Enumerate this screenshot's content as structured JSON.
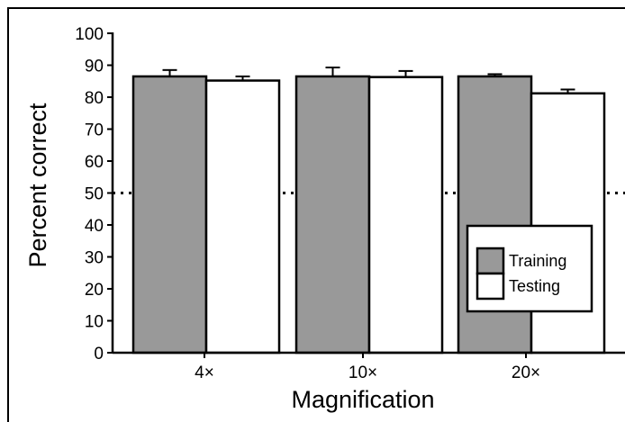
{
  "chart_data": {
    "type": "bar",
    "title": "",
    "xlabel": "Magnification",
    "ylabel": "Percent correct",
    "ylim": [
      0,
      100
    ],
    "yticks": [
      "0",
      "10",
      "20",
      "30",
      "40",
      "50",
      "60",
      "70",
      "80",
      "90",
      "100"
    ],
    "categories": [
      "4×",
      "10×",
      "20×"
    ],
    "series": [
      {
        "name": "Training",
        "values": [
          86.5,
          86.5,
          86.5
        ],
        "errors": [
          2.0,
          2.8,
          0.7
        ],
        "color": "#999999"
      },
      {
        "name": "Testing",
        "values": [
          85.2,
          86.3,
          81.2
        ],
        "errors": [
          1.3,
          1.9,
          1.2
        ],
        "color": "#ffffff"
      }
    ],
    "reference_line": {
      "value": 50,
      "style": "dotted"
    },
    "legend": {
      "position": "lower-right"
    },
    "grid": false
  }
}
